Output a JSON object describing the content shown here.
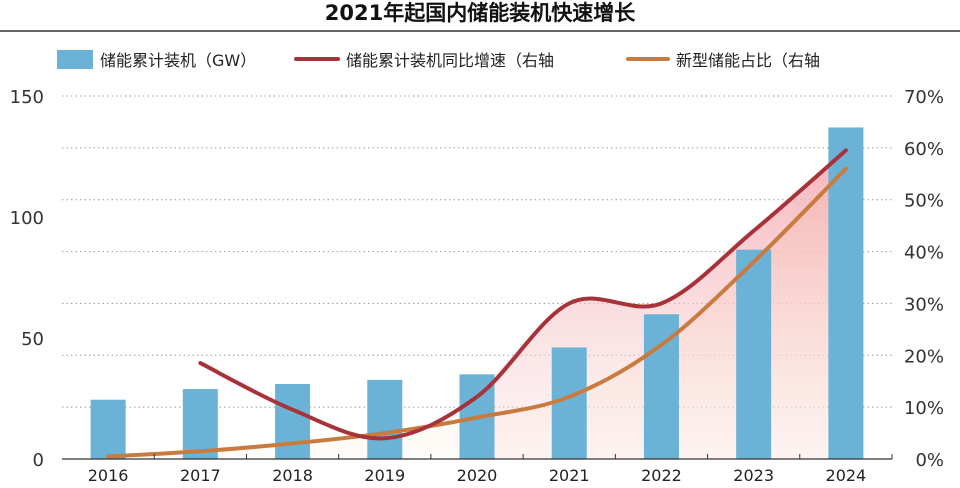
{
  "chart_data": {
    "type": "bar",
    "title": "2021年起国内储能装机快速增长",
    "categories": [
      "2016",
      "2017",
      "2018",
      "2019",
      "2020",
      "2021",
      "2022",
      "2023",
      "2024"
    ],
    "series": [
      {
        "name": "储能累计装机（GW）",
        "type": "bar",
        "axis": "left",
        "color": "#6bb3d6",
        "values": [
          24.5,
          28.9,
          31.0,
          32.7,
          35.0,
          46.1,
          59.8,
          86.5,
          137.0
        ]
      },
      {
        "name": "储能累计装机同比增速（右轴",
        "type": "line",
        "axis": "right",
        "color": "#a8323a",
        "values": [
          null,
          18.5,
          9.5,
          4.0,
          12.0,
          30.0,
          30.0,
          44.0,
          59.5
        ]
      },
      {
        "name": "新型储能占比（右轴",
        "type": "line",
        "axis": "right",
        "color": "#c97b3f",
        "values": [
          0.5,
          1.5,
          3.0,
          5.0,
          8.0,
          12.0,
          22.0,
          38.0,
          56.0
        ]
      }
    ],
    "y_left": {
      "min": 0,
      "max": 150,
      "ticks": [
        "0",
        "50",
        "100",
        "150"
      ]
    },
    "y_right": {
      "min": 0,
      "max": 70,
      "ticks": [
        "0%",
        "10%",
        "20%",
        "30%",
        "40%",
        "50%",
        "60%",
        "70%"
      ]
    },
    "grid": "dotted-horizontal",
    "legend_position": "top"
  }
}
